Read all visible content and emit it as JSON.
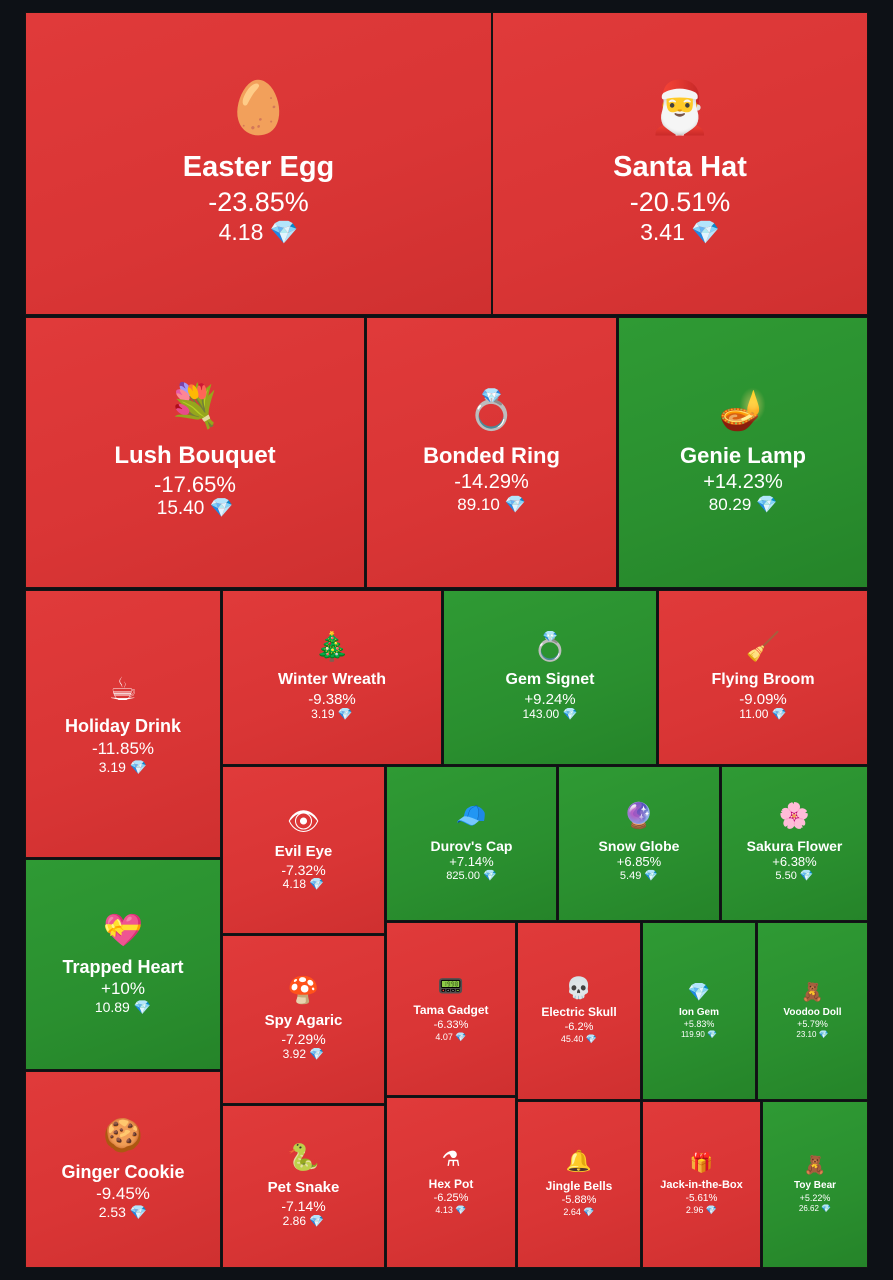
{
  "currency_icon": "💎",
  "colors": {
    "up": "#2a8f2f",
    "down": "#d93535",
    "background": "#0d1116"
  },
  "chart_data": {
    "type": "treemap",
    "items": [
      {
        "name": "Easter Egg",
        "change": "-23.85%",
        "price": "4.18",
        "icon": "🥚"
      },
      {
        "name": "Santa Hat",
        "change": "-20.51%",
        "price": "3.41",
        "icon": "🎅"
      },
      {
        "name": "Lush Bouquet",
        "change": "-17.65%",
        "price": "15.40",
        "icon": "💐"
      },
      {
        "name": "Bonded Ring",
        "change": "-14.29%",
        "price": "89.10",
        "icon": "💍"
      },
      {
        "name": "Genie Lamp",
        "change": "+14.23%",
        "price": "80.29",
        "icon": "🪔"
      },
      {
        "name": "Holiday Drink",
        "change": "-11.85%",
        "price": "3.19",
        "icon": "☕"
      },
      {
        "name": "Winter Wreath",
        "change": "-9.38%",
        "price": "3.19",
        "icon": "🎄"
      },
      {
        "name": "Gem Signet",
        "change": "+9.24%",
        "price": "143.00",
        "icon": "💍"
      },
      {
        "name": "Flying Broom",
        "change": "-9.09%",
        "price": "11.00",
        "icon": "🧹"
      },
      {
        "name": "Evil Eye",
        "change": "-7.32%",
        "price": "4.18",
        "icon": "👁"
      },
      {
        "name": "Durov's Cap",
        "change": "+7.14%",
        "price": "825.00",
        "icon": "🧢"
      },
      {
        "name": "Snow Globe",
        "change": "+6.85%",
        "price": "5.49",
        "icon": "🔮"
      },
      {
        "name": "Sakura Flower",
        "change": "+6.38%",
        "price": "5.50",
        "icon": "🌸"
      },
      {
        "name": "Trapped Heart",
        "change": "+10%",
        "price": "10.89",
        "icon": "💝"
      },
      {
        "name": "Spy Agaric",
        "change": "-7.29%",
        "price": "3.92",
        "icon": "🍄"
      },
      {
        "name": "Tama Gadget",
        "change": "-6.33%",
        "price": "4.07",
        "icon": "📟"
      },
      {
        "name": "Electric Skull",
        "change": "-6.2%",
        "price": "45.40",
        "icon": "💀"
      },
      {
        "name": "Ion Gem",
        "change": "+5.83%",
        "price": "119.90",
        "icon": "💎"
      },
      {
        "name": "Voodoo Doll",
        "change": "+5.79%",
        "price": "23.10",
        "icon": "🧸"
      },
      {
        "name": "Ginger Cookie",
        "change": "-9.45%",
        "price": "2.53",
        "icon": "🍪"
      },
      {
        "name": "Pet Snake",
        "change": "-7.14%",
        "price": "2.86",
        "icon": "🐍"
      },
      {
        "name": "Hex Pot",
        "change": "-6.25%",
        "price": "4.13",
        "icon": "⚗"
      },
      {
        "name": "Jingle Bells",
        "change": "-5.88%",
        "price": "2.64",
        "icon": "🔔"
      },
      {
        "name": "Jack-in-the-Box",
        "change": "-5.61%",
        "price": "2.96",
        "icon": "🎁"
      },
      {
        "name": "Toy Bear",
        "change": "+5.22%",
        "price": "26.62",
        "icon": "🧸"
      }
    ]
  }
}
